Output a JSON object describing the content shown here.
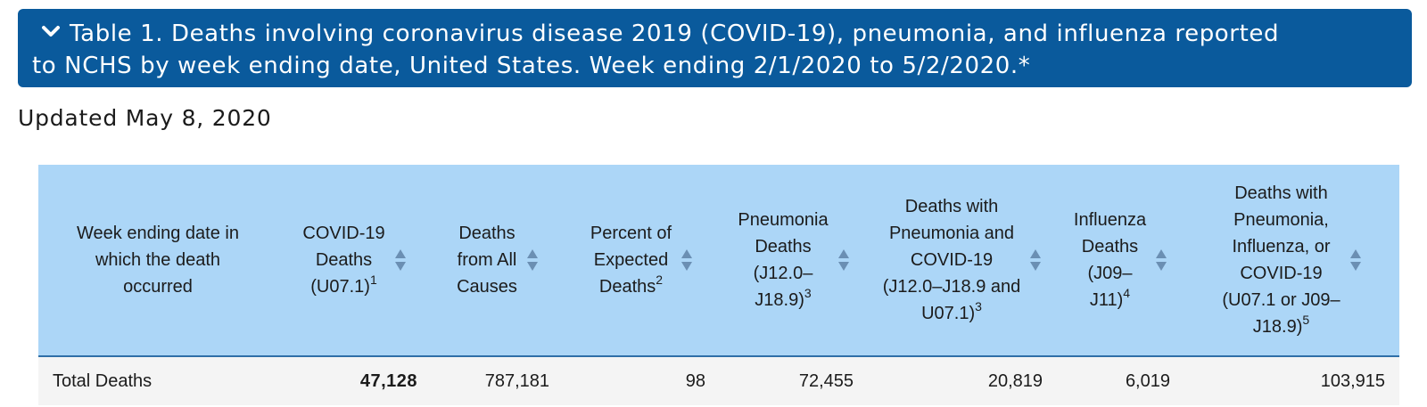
{
  "accordion": {
    "title_line1": "Table 1. Deaths involving coronavirus disease 2019 (COVID-19), pneumonia, and influenza reported",
    "title_line2": "to NCHS by week ending date, United States. Week ending 2/1/2020 to 5/2/2020.*",
    "icon": "chevron-down-icon",
    "color": "#0a5a9c"
  },
  "updated": "Updated May 8, 2020",
  "table": {
    "header_bg": "#acd6f7",
    "columns": [
      {
        "lines": [
          "Week ending date in",
          "which the death",
          "occurred"
        ],
        "sup": "",
        "sortable": false
      },
      {
        "lines": [
          "COVID-19",
          "Deaths",
          "(U07.1)"
        ],
        "sup": "1",
        "sortable": true
      },
      {
        "lines": [
          "Deaths",
          "from All",
          "Causes"
        ],
        "sup": "",
        "sortable": true
      },
      {
        "lines": [
          "Percent of",
          "Expected",
          "Deaths"
        ],
        "sup": "2",
        "sortable": true
      },
      {
        "lines": [
          "Pneumonia",
          "Deaths",
          "(J12.0–",
          "J18.9)"
        ],
        "sup": "3",
        "sortable": true
      },
      {
        "lines": [
          "Deaths with",
          "Pneumonia and",
          "COVID-19",
          "(J12.0–J18.9 and",
          "U07.1)"
        ],
        "sup": "3",
        "sortable": true
      },
      {
        "lines": [
          "Influenza",
          "Deaths",
          "(J09–",
          "J11)"
        ],
        "sup": "4",
        "sortable": true
      },
      {
        "lines": [
          "Deaths with",
          "Pneumonia,",
          "Influenza, or",
          "COVID-19",
          "(U07.1 or J09–",
          "J18.9)"
        ],
        "sup": "5",
        "sortable": true
      }
    ],
    "rows": [
      [
        "Total Deaths",
        "47,128",
        "787,181",
        "98",
        "72,455",
        "20,819",
        "6,019",
        "103,915"
      ]
    ]
  }
}
